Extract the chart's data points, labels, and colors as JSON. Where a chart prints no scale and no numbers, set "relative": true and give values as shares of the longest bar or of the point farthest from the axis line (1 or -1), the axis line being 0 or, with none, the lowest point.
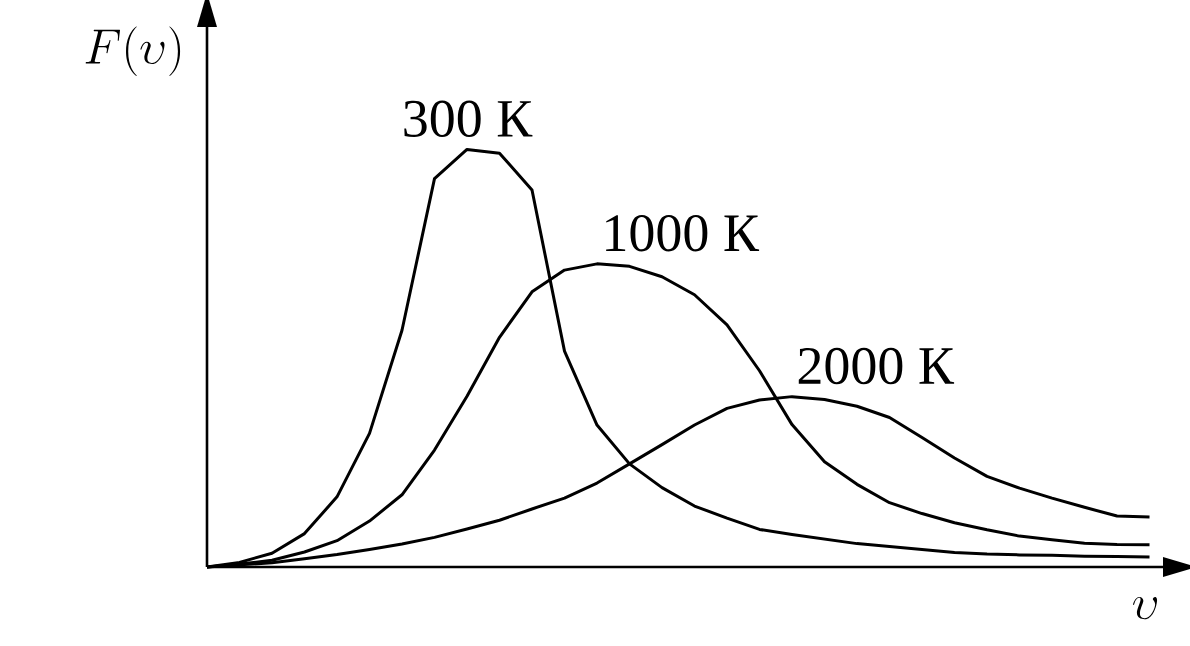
{
  "chart_data": {
    "type": "line",
    "relative": true,
    "xlabel": "\\upsilon",
    "ylabel": "F(\\upsilon)",
    "categories": [
      null,
      null,
      null,
      null,
      null,
      null,
      null,
      null,
      null,
      null,
      null,
      null,
      null,
      null,
      null,
      null,
      null,
      null,
      null,
      null,
      null,
      null,
      null,
      null,
      null,
      null,
      null,
      null,
      null,
      null
    ],
    "series": [
      {
        "name": "300 К",
        "color": "#000000",
        "values": [
          0,
          0.011,
          0.033,
          0.08,
          0.168,
          0.32,
          0.567,
          0.93,
          1,
          0.991,
          0.903,
          0.517,
          0.34,
          0.247,
          0.19,
          0.146,
          0.117,
          0.09,
          0.078,
          0.067,
          0.056,
          0.049,
          0.042,
          0.035,
          0.031,
          0.029,
          0.028,
          0.026,
          0.025,
          0.024
        ]
      },
      {
        "name": "1000 К",
        "color": "#000000",
        "values": [
          0,
          0.007,
          0.016,
          0.036,
          0.063,
          0.11,
          0.173,
          0.28,
          0.409,
          0.55,
          0.659,
          0.711,
          0.726,
          0.72,
          0.695,
          0.652,
          0.58,
          0.47,
          0.341,
          0.252,
          0.198,
          0.154,
          0.128,
          0.106,
          0.089,
          0.074,
          0.065,
          0.057,
          0.054,
          0.053
        ]
      },
      {
        "name": "2000 К",
        "color": "#000000",
        "values": [
          0,
          0.005,
          0.01,
          0.02,
          0.03,
          0.042,
          0.055,
          0.071,
          0.091,
          0.112,
          0.139,
          0.165,
          0.201,
          0.247,
          0.293,
          0.34,
          0.38,
          0.4,
          0.408,
          0.401,
          0.385,
          0.358,
          0.31,
          0.261,
          0.217,
          0.189,
          0.165,
          0.143,
          0.122,
          0.12
        ]
      }
    ]
  }
}
